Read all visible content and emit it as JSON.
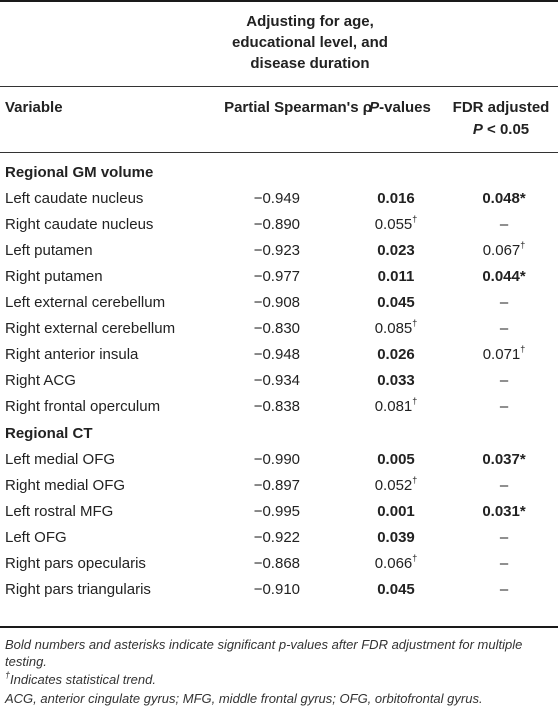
{
  "header": {
    "group_line1": "Adjusting for age,",
    "group_line2": "educational level, and",
    "group_line3": "disease duration",
    "col_variable": "Variable",
    "col_rho": "Partial Spearman's ρ",
    "col_p_italic": "P",
    "col_p_rest": "-values",
    "col_fdr_line1": "FDR adjusted",
    "col_fdr_p": "P",
    "col_fdr_rest": " < 0.05"
  },
  "sections": [
    {
      "title": "Regional GM volume",
      "rows": [
        {
          "variable": "Left caudate nucleus",
          "rho": "−0.949",
          "p": "0.016",
          "p_bold": true,
          "p_dagger": false,
          "fdr": "0.048*",
          "fdr_bold": true,
          "fdr_dagger": false
        },
        {
          "variable": "Right caudate nucleus",
          "rho": "−0.890",
          "p": "0.055",
          "p_bold": false,
          "p_dagger": true,
          "fdr": "–",
          "fdr_bold": false,
          "fdr_dagger": false
        },
        {
          "variable": "Left putamen",
          "rho": "−0.923",
          "p": "0.023",
          "p_bold": true,
          "p_dagger": false,
          "fdr": "0.067",
          "fdr_bold": false,
          "fdr_dagger": true
        },
        {
          "variable": "Right putamen",
          "rho": "−0.977",
          "p": "0.011",
          "p_bold": true,
          "p_dagger": false,
          "fdr": "0.044*",
          "fdr_bold": true,
          "fdr_dagger": false
        },
        {
          "variable": "Left external cerebellum",
          "rho": "−0.908",
          "p": "0.045",
          "p_bold": true,
          "p_dagger": false,
          "fdr": "–",
          "fdr_bold": false,
          "fdr_dagger": false
        },
        {
          "variable": "Right external cerebellum",
          "rho": "−0.830",
          "p": "0.085",
          "p_bold": false,
          "p_dagger": true,
          "fdr": "–",
          "fdr_bold": false,
          "fdr_dagger": false
        },
        {
          "variable": "Right anterior insula",
          "rho": "−0.948",
          "p": "0.026",
          "p_bold": true,
          "p_dagger": false,
          "fdr": "0.071",
          "fdr_bold": false,
          "fdr_dagger": true
        },
        {
          "variable": "Right ACG",
          "rho": "−0.934",
          "p": "0.033",
          "p_bold": true,
          "p_dagger": false,
          "fdr": "–",
          "fdr_bold": false,
          "fdr_dagger": false
        },
        {
          "variable": "Right frontal operculum",
          "rho": "−0.838",
          "p": "0.081",
          "p_bold": false,
          "p_dagger": true,
          "fdr": "–",
          "fdr_bold": false,
          "fdr_dagger": false
        }
      ]
    },
    {
      "title": "Regional CT",
      "rows": [
        {
          "variable": "Left medial OFG",
          "rho": "−0.990",
          "p": "0.005",
          "p_bold": true,
          "p_dagger": false,
          "fdr": "0.037*",
          "fdr_bold": true,
          "fdr_dagger": false
        },
        {
          "variable": "Right medial OFG",
          "rho": "−0.897",
          "p": "0.052",
          "p_bold": false,
          "p_dagger": true,
          "fdr": "–",
          "fdr_bold": false,
          "fdr_dagger": false
        },
        {
          "variable": "Left rostral MFG",
          "rho": "−0.995",
          "p": "0.001",
          "p_bold": true,
          "p_dagger": false,
          "fdr": "0.031*",
          "fdr_bold": true,
          "fdr_dagger": false
        },
        {
          "variable": "Left OFG",
          "rho": "−0.922",
          "p": "0.039",
          "p_bold": true,
          "p_dagger": false,
          "fdr": "–",
          "fdr_bold": false,
          "fdr_dagger": false
        },
        {
          "variable": "Right pars opecularis",
          "rho": "−0.868",
          "p": "0.066",
          "p_bold": false,
          "p_dagger": true,
          "fdr": "–",
          "fdr_bold": false,
          "fdr_dagger": false
        },
        {
          "variable": "Right pars triangularis",
          "rho": "−0.910",
          "p": "0.045",
          "p_bold": true,
          "p_dagger": false,
          "fdr": "–",
          "fdr_bold": false,
          "fdr_dagger": false
        }
      ]
    }
  ],
  "dagger": "†",
  "footnotes": {
    "bold_note": "Bold numbers and asterisks indicate significant p-values after FDR adjustment for multiple testing.",
    "dagger_note": "Indicates statistical trend.",
    "abbrev_note": "ACG, anterior cingulate gyrus; MFG, middle frontal gyrus; OFG, orbitofrontal gyrus."
  }
}
